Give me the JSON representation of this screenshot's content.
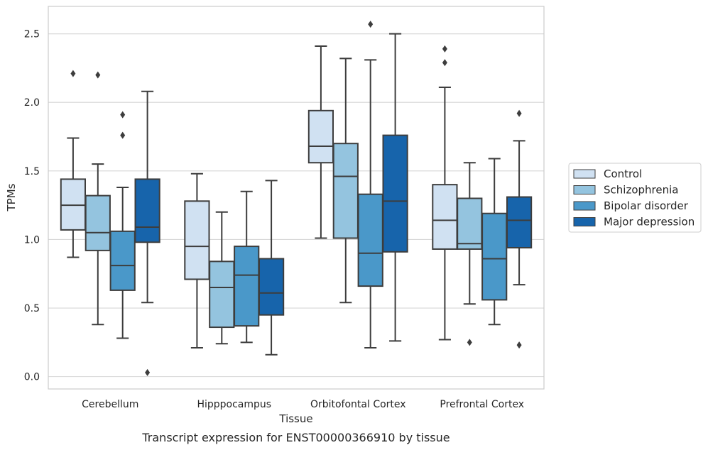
{
  "caption": "Transcript expression for ENST00000366910 by tissue",
  "chart_data": {
    "type": "boxplot",
    "xlabel": "Tissue",
    "ylabel": "TPMs",
    "ylim": [
      -0.09,
      2.7
    ],
    "yticks": [
      "0.0",
      "0.5",
      "1.0",
      "1.5",
      "2.0",
      "2.5"
    ],
    "grid": "horizontal",
    "legend_position": "right",
    "categories": [
      "Cerebellum",
      "Hipppocampus",
      "Orbitofontal Cortex",
      "Prefrontal Cortex"
    ],
    "series": [
      {
        "name": "Control",
        "color": "#d0e1f2",
        "boxes": [
          {
            "whislo": 0.87,
            "q1": 1.07,
            "med": 1.25,
            "q3": 1.44,
            "whishi": 1.74,
            "fliers": [
              2.21
            ]
          },
          {
            "whislo": 0.21,
            "q1": 0.71,
            "med": 0.95,
            "q3": 1.28,
            "whishi": 1.48,
            "fliers": []
          },
          {
            "whislo": 1.01,
            "q1": 1.56,
            "med": 1.68,
            "q3": 1.94,
            "whishi": 2.41,
            "fliers": []
          },
          {
            "whislo": 0.27,
            "q1": 0.93,
            "med": 1.14,
            "q3": 1.4,
            "whishi": 2.11,
            "fliers": [
              2.29,
              2.39
            ]
          }
        ]
      },
      {
        "name": "Schizophrenia",
        "color": "#94c4df",
        "boxes": [
          {
            "whislo": 0.38,
            "q1": 0.92,
            "med": 1.05,
            "q3": 1.32,
            "whishi": 1.55,
            "fliers": [
              2.2
            ]
          },
          {
            "whislo": 0.24,
            "q1": 0.36,
            "med": 0.65,
            "q3": 0.84,
            "whishi": 1.2,
            "fliers": []
          },
          {
            "whislo": 0.54,
            "q1": 1.01,
            "med": 1.46,
            "q3": 1.7,
            "whishi": 2.32,
            "fliers": []
          },
          {
            "whislo": 0.53,
            "q1": 0.93,
            "med": 0.97,
            "q3": 1.3,
            "whishi": 1.56,
            "fliers": [
              0.25
            ]
          }
        ]
      },
      {
        "name": "Bipolar disorder",
        "color": "#4a98c9",
        "boxes": [
          {
            "whislo": 0.28,
            "q1": 0.63,
            "med": 0.81,
            "q3": 1.06,
            "whishi": 1.38,
            "fliers": [
              1.76,
              1.91
            ]
          },
          {
            "whislo": 0.25,
            "q1": 0.37,
            "med": 0.74,
            "q3": 0.95,
            "whishi": 1.35,
            "fliers": []
          },
          {
            "whislo": 0.21,
            "q1": 0.66,
            "med": 0.9,
            "q3": 1.33,
            "whishi": 2.31,
            "fliers": [
              2.57
            ]
          },
          {
            "whislo": 0.38,
            "q1": 0.56,
            "med": 0.86,
            "q3": 1.19,
            "whishi": 1.59,
            "fliers": []
          }
        ]
      },
      {
        "name": "Major depression",
        "color": "#1764ab",
        "boxes": [
          {
            "whislo": 0.54,
            "q1": 0.98,
            "med": 1.09,
            "q3": 1.44,
            "whishi": 2.08,
            "fliers": [
              0.03
            ]
          },
          {
            "whislo": 0.16,
            "q1": 0.45,
            "med": 0.61,
            "q3": 0.86,
            "whishi": 1.43,
            "fliers": []
          },
          {
            "whislo": 0.26,
            "q1": 0.91,
            "med": 1.28,
            "q3": 1.76,
            "whishi": 2.5,
            "fliers": []
          },
          {
            "whislo": 0.67,
            "q1": 0.94,
            "med": 1.14,
            "q3": 1.31,
            "whishi": 1.72,
            "fliers": [
              0.23,
              1.92
            ]
          }
        ]
      }
    ]
  }
}
